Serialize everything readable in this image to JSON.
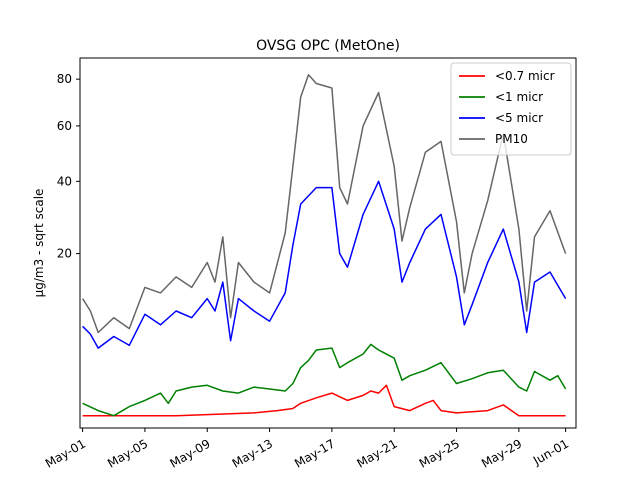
{
  "chart_data": {
    "type": "line",
    "title": "OVSG OPC (MetOne)",
    "xlabel": "",
    "ylabel": "µg/m3 - sqrt scale",
    "y_scale": "sqrt",
    "ylim": [
      0,
      90
    ],
    "xlim": [
      "2024-04-30T20:00",
      "2024-06-01T16:00"
    ],
    "x_ticks": [
      {
        "date": "2024-05-01",
        "label": "May-01"
      },
      {
        "date": "2024-05-05",
        "label": "May-05"
      },
      {
        "date": "2024-05-09",
        "label": "May-09"
      },
      {
        "date": "2024-05-13",
        "label": "May-13"
      },
      {
        "date": "2024-05-17",
        "label": "May-17"
      },
      {
        "date": "2024-05-21",
        "label": "May-21"
      },
      {
        "date": "2024-05-25",
        "label": "May-25"
      },
      {
        "date": "2024-05-29",
        "label": "May-29"
      },
      {
        "date": "2024-06-01",
        "label": "Jun-01"
      }
    ],
    "y_ticks": [
      20,
      40,
      60,
      80
    ],
    "grid": false,
    "legend_position": "top-right",
    "series": [
      {
        "name": "<0.7 micr",
        "color": "#ff0000",
        "points": [
          [
            "2024-05-01T00:00",
            0.1
          ],
          [
            "2024-05-07T00:00",
            0.1
          ],
          [
            "2024-05-12T00:00",
            0.15
          ],
          [
            "2024-05-13T12:00",
            0.2
          ],
          [
            "2024-05-14T12:00",
            0.25
          ],
          [
            "2024-05-15T00:00",
            0.4
          ],
          [
            "2024-05-16T00:00",
            0.6
          ],
          [
            "2024-05-17T00:00",
            0.8
          ],
          [
            "2024-05-18T00:00",
            0.5
          ],
          [
            "2024-05-19T00:00",
            0.7
          ],
          [
            "2024-05-19T12:00",
            0.9
          ],
          [
            "2024-05-20T00:00",
            0.8
          ],
          [
            "2024-05-20T12:00",
            1.2
          ],
          [
            "2024-05-21T00:00",
            0.3
          ],
          [
            "2024-05-22T00:00",
            0.2
          ],
          [
            "2024-05-23T00:00",
            0.4
          ],
          [
            "2024-05-23T12:00",
            0.5
          ],
          [
            "2024-05-24T00:00",
            0.2
          ],
          [
            "2024-05-25T00:00",
            0.15
          ],
          [
            "2024-05-27T00:00",
            0.2
          ],
          [
            "2024-05-28T00:00",
            0.35
          ],
          [
            "2024-05-29T00:00",
            0.1
          ],
          [
            "2024-05-31T00:00",
            0.1
          ],
          [
            "2024-06-01T00:00",
            0.1
          ]
        ]
      },
      {
        "name": "<1 micr",
        "color": "#008000",
        "points": [
          [
            "2024-05-01T00:00",
            0.4
          ],
          [
            "2024-05-02T00:00",
            0.2
          ],
          [
            "2024-05-03T00:00",
            0.1
          ],
          [
            "2024-05-04T00:00",
            0.3
          ],
          [
            "2024-05-05T00:00",
            0.5
          ],
          [
            "2024-05-06T00:00",
            0.8
          ],
          [
            "2024-05-06T12:00",
            0.4
          ],
          [
            "2024-05-07T00:00",
            0.9
          ],
          [
            "2024-05-08T00:00",
            1.1
          ],
          [
            "2024-05-09T00:00",
            1.2
          ],
          [
            "2024-05-10T00:00",
            0.9
          ],
          [
            "2024-05-11T00:00",
            0.8
          ],
          [
            "2024-05-12T00:00",
            1.1
          ],
          [
            "2024-05-13T00:00",
            1.0
          ],
          [
            "2024-05-14T00:00",
            0.9
          ],
          [
            "2024-05-14T12:00",
            1.3
          ],
          [
            "2024-05-15T00:00",
            2.4
          ],
          [
            "2024-05-15T12:00",
            3.0
          ],
          [
            "2024-05-16T00:00",
            4.0
          ],
          [
            "2024-05-17T00:00",
            4.2
          ],
          [
            "2024-05-17T12:00",
            2.4
          ],
          [
            "2024-05-18T00:00",
            2.8
          ],
          [
            "2024-05-19T00:00",
            3.6
          ],
          [
            "2024-05-19T12:00",
            4.6
          ],
          [
            "2024-05-20T00:00",
            4.0
          ],
          [
            "2024-05-21T00:00",
            3.2
          ],
          [
            "2024-05-21T12:00",
            1.5
          ],
          [
            "2024-05-22T00:00",
            1.8
          ],
          [
            "2024-05-23T00:00",
            2.2
          ],
          [
            "2024-05-24T00:00",
            2.8
          ],
          [
            "2024-05-25T00:00",
            1.3
          ],
          [
            "2024-05-26T00:00",
            1.6
          ],
          [
            "2024-05-27T00:00",
            2.0
          ],
          [
            "2024-05-28T00:00",
            2.2
          ],
          [
            "2024-05-28T12:00",
            1.6
          ],
          [
            "2024-05-29T00:00",
            1.1
          ],
          [
            "2024-05-29T12:00",
            0.9
          ],
          [
            "2024-05-30T00:00",
            2.1
          ],
          [
            "2024-05-31T00:00",
            1.5
          ],
          [
            "2024-05-31T12:00",
            1.8
          ],
          [
            "2024-06-01T00:00",
            1.0
          ]
        ]
      },
      {
        "name": "<5 micr",
        "color": "#0000ff",
        "points": [
          [
            "2024-05-01T00:00",
            6.8
          ],
          [
            "2024-05-01T12:00",
            5.8
          ],
          [
            "2024-05-02T00:00",
            4.2
          ],
          [
            "2024-05-03T00:00",
            5.5
          ],
          [
            "2024-05-04T00:00",
            4.5
          ],
          [
            "2024-05-05T00:00",
            8.5
          ],
          [
            "2024-05-06T00:00",
            7.0
          ],
          [
            "2024-05-07T00:00",
            9.0
          ],
          [
            "2024-05-08T00:00",
            8.0
          ],
          [
            "2024-05-09T00:00",
            11.0
          ],
          [
            "2024-05-09T12:00",
            9.0
          ],
          [
            "2024-05-10T00:00",
            14.0
          ],
          [
            "2024-05-10T12:00",
            5.0
          ],
          [
            "2024-05-11T00:00",
            11.0
          ],
          [
            "2024-05-12T00:00",
            9.0
          ],
          [
            "2024-05-13T00:00",
            7.5
          ],
          [
            "2024-05-14T00:00",
            12.0
          ],
          [
            "2024-05-14T12:00",
            22.0
          ],
          [
            "2024-05-15T00:00",
            33.0
          ],
          [
            "2024-05-16T00:00",
            38.0
          ],
          [
            "2024-05-17T00:00",
            38.0
          ],
          [
            "2024-05-17T12:00",
            20.0
          ],
          [
            "2024-05-18T00:00",
            17.0
          ],
          [
            "2024-05-19T00:00",
            30.0
          ],
          [
            "2024-05-20T00:00",
            40.0
          ],
          [
            "2024-05-21T00:00",
            26.0
          ],
          [
            "2024-05-21T12:00",
            14.0
          ],
          [
            "2024-05-22T00:00",
            18.0
          ],
          [
            "2024-05-23T00:00",
            26.0
          ],
          [
            "2024-05-24T00:00",
            30.0
          ],
          [
            "2024-05-25T00:00",
            15.0
          ],
          [
            "2024-05-25T12:00",
            7.0
          ],
          [
            "2024-05-26T00:00",
            10.0
          ],
          [
            "2024-05-27T00:00",
            18.0
          ],
          [
            "2024-05-28T00:00",
            26.0
          ],
          [
            "2024-05-29T00:00",
            14.0
          ],
          [
            "2024-05-29T12:00",
            6.0
          ],
          [
            "2024-05-30T00:00",
            14.0
          ],
          [
            "2024-05-31T00:00",
            16.0
          ],
          [
            "2024-06-01T00:00",
            11.0
          ]
        ]
      },
      {
        "name": "PM10",
        "color": "#666666",
        "points": [
          [
            "2024-05-01T00:00",
            11.0
          ],
          [
            "2024-05-01T12:00",
            9.0
          ],
          [
            "2024-05-02T00:00",
            6.0
          ],
          [
            "2024-05-03T00:00",
            8.0
          ],
          [
            "2024-05-04T00:00",
            6.5
          ],
          [
            "2024-05-05T00:00",
            13.0
          ],
          [
            "2024-05-06T00:00",
            12.0
          ],
          [
            "2024-05-07T00:00",
            15.0
          ],
          [
            "2024-05-08T00:00",
            13.0
          ],
          [
            "2024-05-09T00:00",
            18.0
          ],
          [
            "2024-05-09T12:00",
            14.0
          ],
          [
            "2024-05-10T00:00",
            24.0
          ],
          [
            "2024-05-10T12:00",
            8.0
          ],
          [
            "2024-05-11T00:00",
            18.0
          ],
          [
            "2024-05-12T00:00",
            14.0
          ],
          [
            "2024-05-13T00:00",
            12.0
          ],
          [
            "2024-05-14T00:00",
            25.0
          ],
          [
            "2024-05-14T12:00",
            45.0
          ],
          [
            "2024-05-15T00:00",
            72.0
          ],
          [
            "2024-05-15T12:00",
            82.0
          ],
          [
            "2024-05-16T00:00",
            78.0
          ],
          [
            "2024-05-17T00:00",
            76.0
          ],
          [
            "2024-05-17T12:00",
            38.0
          ],
          [
            "2024-05-18T00:00",
            33.0
          ],
          [
            "2024-05-19T00:00",
            60.0
          ],
          [
            "2024-05-20T00:00",
            74.0
          ],
          [
            "2024-05-21T00:00",
            45.0
          ],
          [
            "2024-05-21T12:00",
            23.0
          ],
          [
            "2024-05-22T00:00",
            32.0
          ],
          [
            "2024-05-23T00:00",
            50.0
          ],
          [
            "2024-05-24T00:00",
            54.0
          ],
          [
            "2024-05-25T00:00",
            28.0
          ],
          [
            "2024-05-25T12:00",
            12.0
          ],
          [
            "2024-05-26T00:00",
            20.0
          ],
          [
            "2024-05-27T00:00",
            34.0
          ],
          [
            "2024-05-28T00:00",
            57.0
          ],
          [
            "2024-05-29T00:00",
            26.0
          ],
          [
            "2024-05-29T12:00",
            9.0
          ],
          [
            "2024-05-30T00:00",
            24.0
          ],
          [
            "2024-05-31T00:00",
            31.0
          ],
          [
            "2024-06-01T00:00",
            20.0
          ]
        ]
      }
    ]
  }
}
